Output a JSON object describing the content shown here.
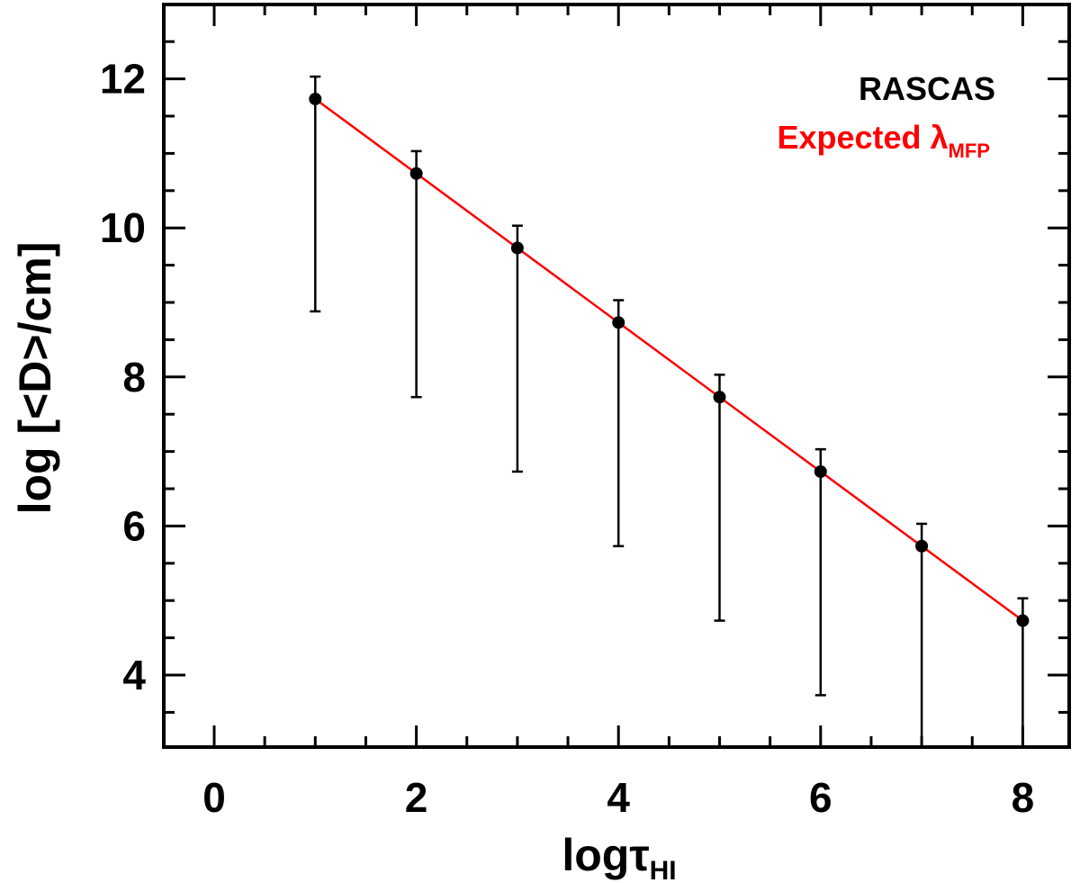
{
  "chart_data": {
    "type": "scatter",
    "xlabel": "logτ",
    "xlabel_subscript": "HI",
    "ylabel": "log [<D>/cm]",
    "xlim": [
      -1,
      8.7
    ],
    "ylim": [
      3,
      13
    ],
    "x_ticks": [
      0,
      2,
      4,
      6,
      8
    ],
    "y_ticks": [
      4,
      6,
      8,
      10,
      12
    ],
    "x_minor_step": 0.5,
    "y_minor_step": 0.5,
    "grid": false,
    "legend_position": "top-right",
    "series": [
      {
        "name": "RASCAS",
        "color": "#000000",
        "marker": "filled-circle",
        "x": [
          1,
          2,
          3,
          4,
          5,
          6,
          7,
          8
        ],
        "y": [
          11.73,
          10.73,
          9.73,
          8.73,
          7.73,
          6.73,
          5.73,
          4.73
        ],
        "err_low": [
          8.88,
          7.73,
          6.73,
          5.73,
          4.73,
          3.73,
          3.0,
          3.0
        ],
        "err_high": [
          12.03,
          11.03,
          10.03,
          9.03,
          8.03,
          7.03,
          6.03,
          5.03
        ]
      },
      {
        "name": "Expected λ",
        "name_subscript": "MFP",
        "color": "#ff0000",
        "line": true,
        "x": [
          1,
          8
        ],
        "y": [
          11.73,
          4.73
        ]
      }
    ]
  }
}
